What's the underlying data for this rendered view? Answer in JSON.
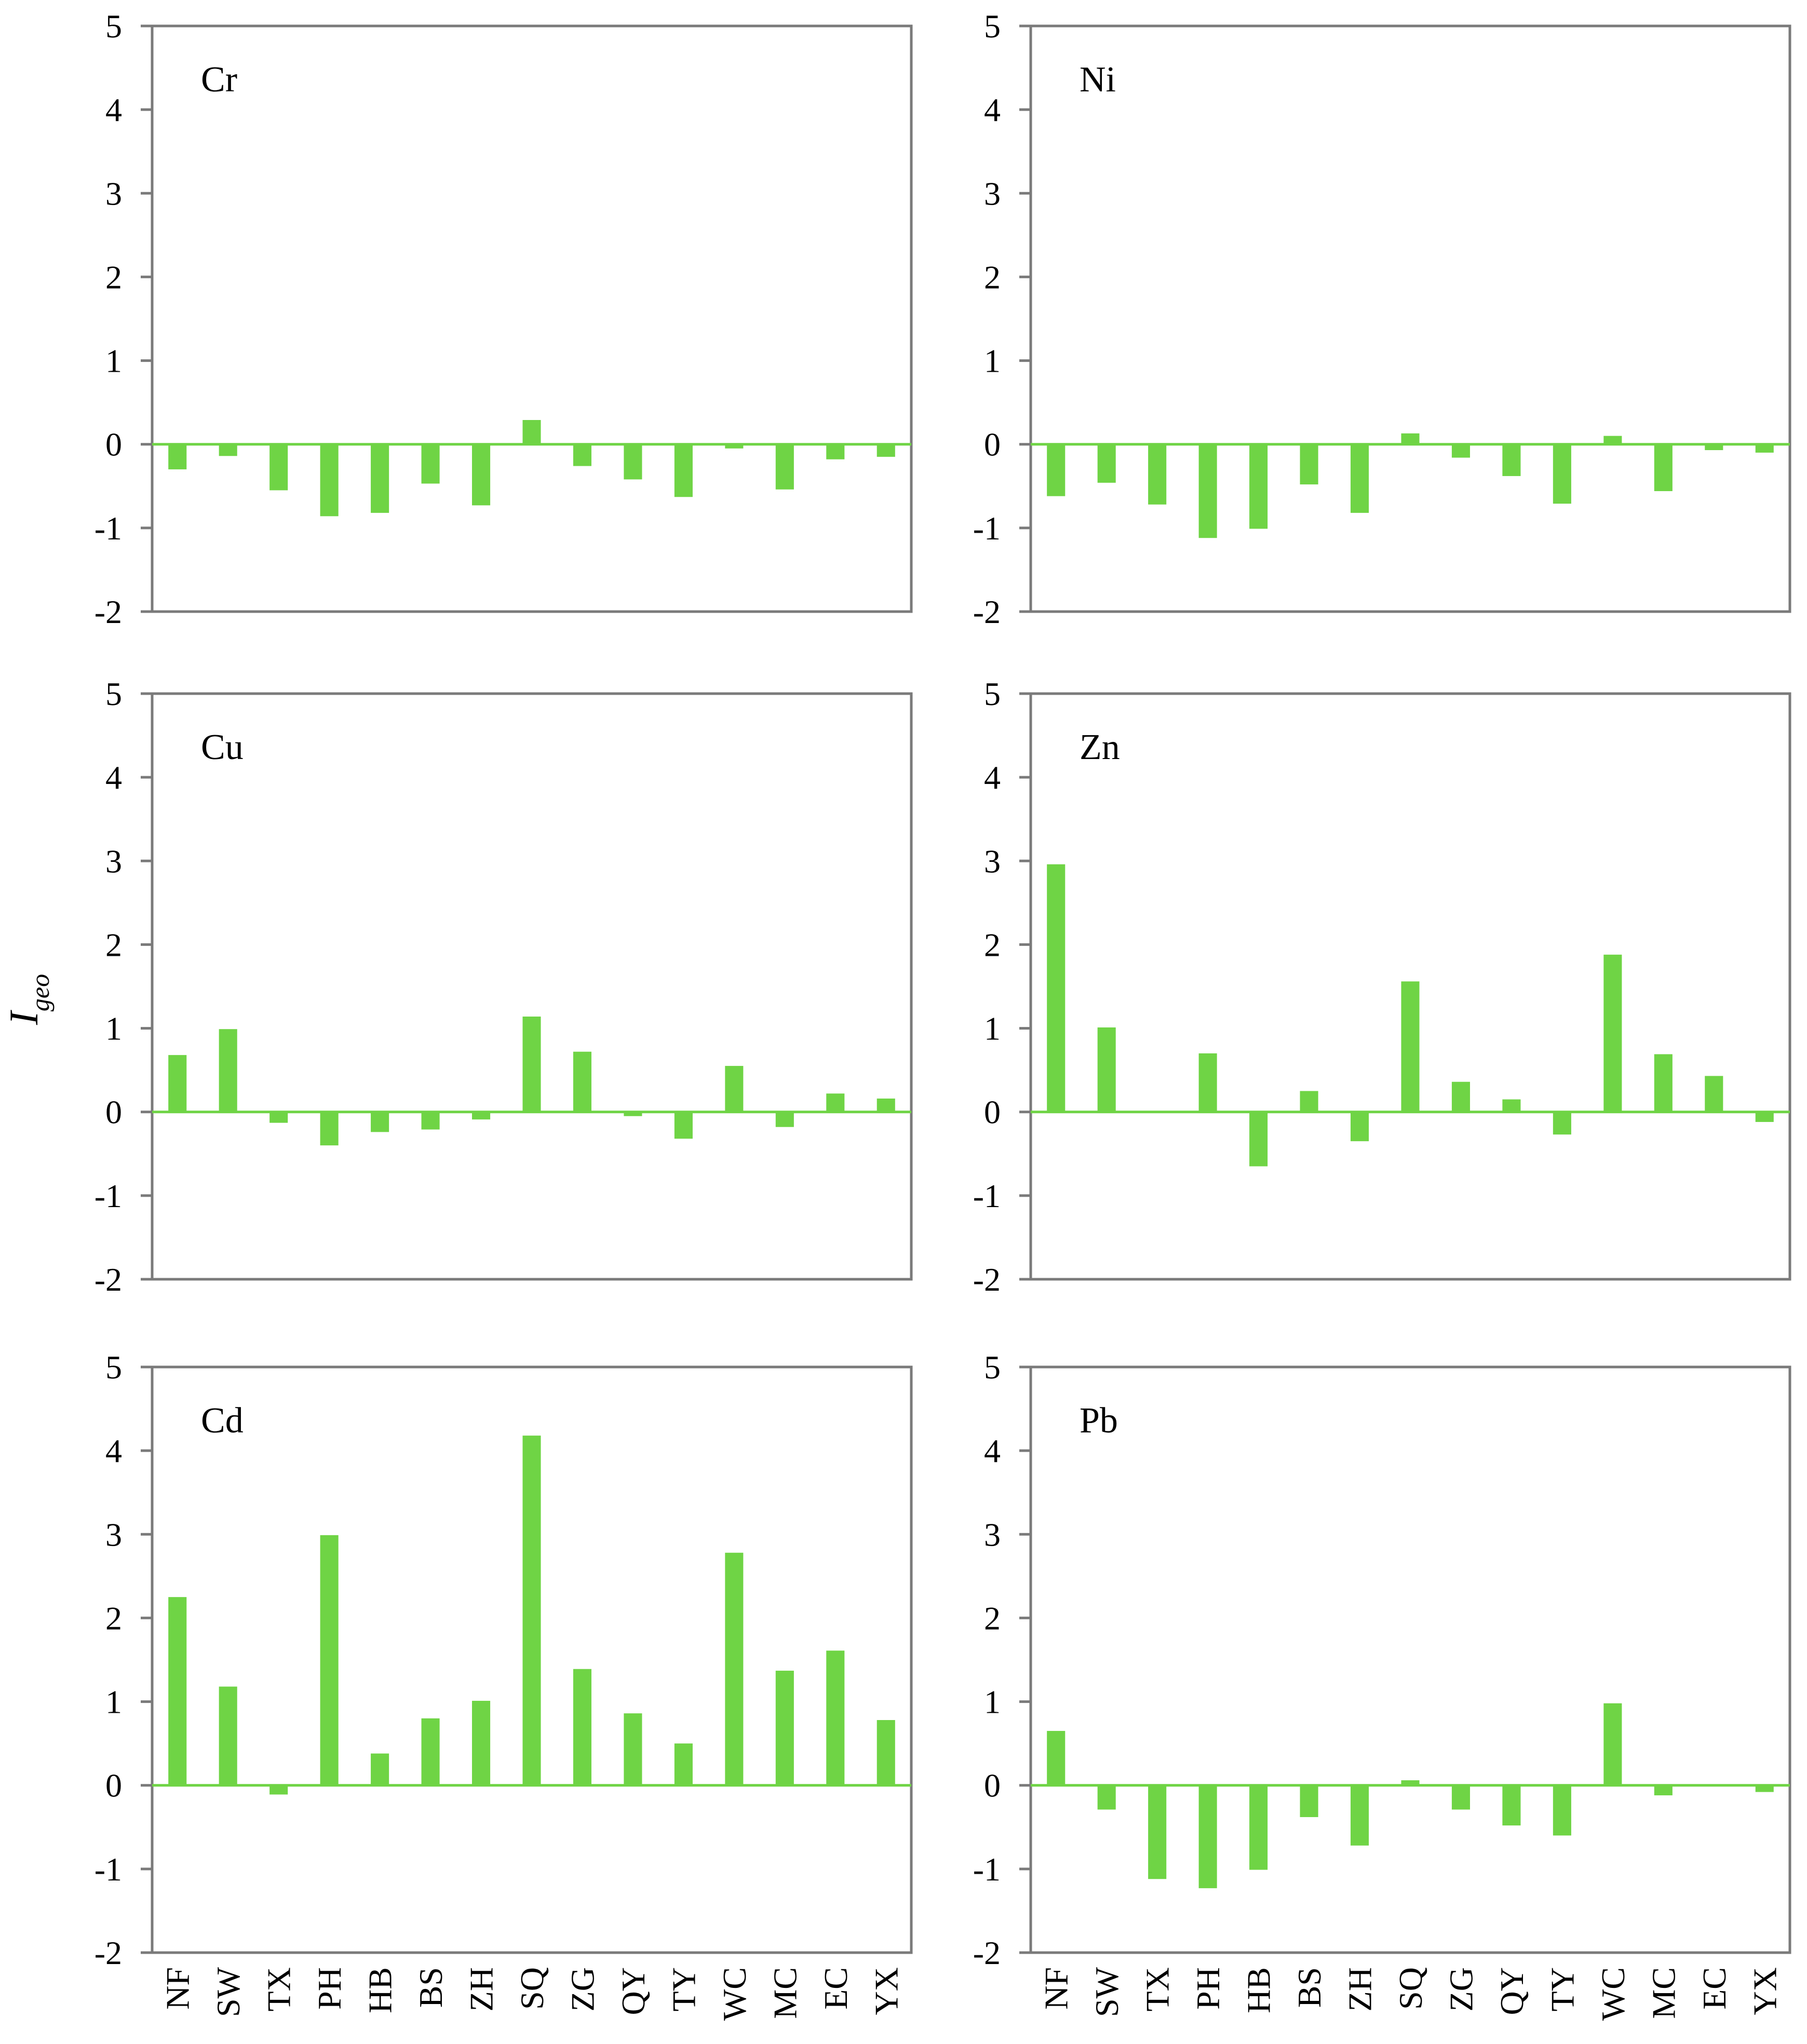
{
  "ylabel": {
    "main": "I",
    "sub": "geo"
  },
  "categories": [
    "NF",
    "SW",
    "TX",
    "PH",
    "HB",
    "BS",
    "ZH",
    "SQ",
    "ZG",
    "QY",
    "TY",
    "WC",
    "MC",
    "EC",
    "YX"
  ],
  "ytick_labels": [
    "5",
    "4",
    "3",
    "2",
    "1",
    "0",
    "-1",
    "-2"
  ],
  "colors": {
    "bar": "#6fd445",
    "axis": "#7a7a7a",
    "zero_line": "#6fd445"
  },
  "chart_data": [
    {
      "type": "bar",
      "title": "Cr",
      "xlabel": "",
      "ylabel": "Igeo",
      "ylim": [
        -2,
        5
      ],
      "grid": false,
      "categories": [
        "NF",
        "SW",
        "TX",
        "PH",
        "HB",
        "BS",
        "ZH",
        "SQ",
        "ZG",
        "QY",
        "TY",
        "WC",
        "MC",
        "EC",
        "YX"
      ],
      "values": [
        -0.3,
        -0.14,
        -0.55,
        -0.86,
        -0.82,
        -0.47,
        -0.73,
        0.29,
        -0.26,
        -0.42,
        -0.63,
        -0.05,
        -0.54,
        -0.18,
        -0.15
      ]
    },
    {
      "type": "bar",
      "title": "Ni",
      "xlabel": "",
      "ylabel": "Igeo",
      "ylim": [
        -2,
        5
      ],
      "grid": false,
      "categories": [
        "NF",
        "SW",
        "TX",
        "PH",
        "HB",
        "BS",
        "ZH",
        "SQ",
        "ZG",
        "QY",
        "TY",
        "WC",
        "MC",
        "EC",
        "YX"
      ],
      "values": [
        -0.62,
        -0.46,
        -0.72,
        -1.12,
        -1.01,
        -0.48,
        -0.82,
        0.13,
        -0.16,
        -0.38,
        -0.71,
        0.1,
        -0.56,
        -0.07,
        -0.1
      ]
    },
    {
      "type": "bar",
      "title": "Cu",
      "xlabel": "",
      "ylabel": "Igeo",
      "ylim": [
        -2,
        5
      ],
      "grid": false,
      "categories": [
        "NF",
        "SW",
        "TX",
        "PH",
        "HB",
        "BS",
        "ZH",
        "SQ",
        "ZG",
        "QY",
        "TY",
        "WC",
        "MC",
        "EC",
        "YX"
      ],
      "values": [
        0.68,
        0.99,
        -0.13,
        -0.4,
        -0.24,
        -0.21,
        -0.09,
        1.14,
        0.72,
        -0.05,
        -0.32,
        0.55,
        -0.18,
        0.22,
        0.16
      ]
    },
    {
      "type": "bar",
      "title": "Zn",
      "xlabel": "",
      "ylabel": "Igeo",
      "ylim": [
        -2,
        5
      ],
      "grid": false,
      "categories": [
        "NF",
        "SW",
        "TX",
        "PH",
        "HB",
        "BS",
        "ZH",
        "SQ",
        "ZG",
        "QY",
        "TY",
        "WC",
        "MC",
        "EC",
        "YX"
      ],
      "values": [
        2.96,
        1.01,
        0.0,
        0.7,
        -0.65,
        0.25,
        -0.35,
        1.56,
        0.36,
        0.15,
        -0.27,
        1.88,
        0.69,
        0.43,
        -0.12
      ]
    },
    {
      "type": "bar",
      "title": "Cd",
      "xlabel": "",
      "ylabel": "Igeo",
      "ylim": [
        -2,
        5
      ],
      "grid": false,
      "categories": [
        "NF",
        "SW",
        "TX",
        "PH",
        "HB",
        "BS",
        "ZH",
        "SQ",
        "ZG",
        "QY",
        "TY",
        "WC",
        "MC",
        "EC",
        "YX"
      ],
      "values": [
        2.25,
        1.18,
        -0.11,
        2.99,
        0.38,
        0.8,
        1.01,
        4.18,
        1.39,
        0.86,
        0.5,
        2.78,
        1.37,
        1.61,
        0.78
      ]
    },
    {
      "type": "bar",
      "title": "Pb",
      "xlabel": "",
      "ylabel": "Igeo",
      "ylim": [
        -2,
        5
      ],
      "grid": false,
      "categories": [
        "NF",
        "SW",
        "TX",
        "PH",
        "HB",
        "BS",
        "ZH",
        "SQ",
        "ZG",
        "QY",
        "TY",
        "WC",
        "MC",
        "EC",
        "YX"
      ],
      "values": [
        0.65,
        -0.29,
        -1.12,
        -1.23,
        -1.01,
        -0.38,
        -0.72,
        0.06,
        -0.29,
        -0.48,
        -0.6,
        0.98,
        -0.12,
        0.0,
        -0.08
      ]
    }
  ]
}
